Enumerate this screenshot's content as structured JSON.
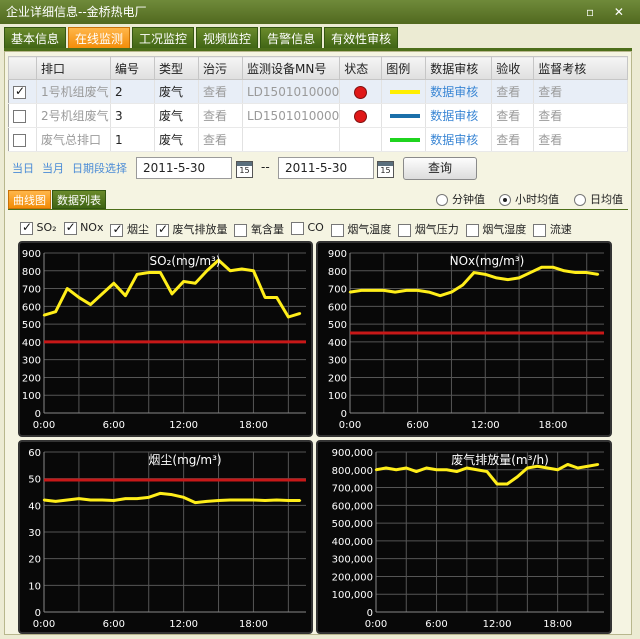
{
  "window": {
    "title": "企业详细信息--金桥热电厂",
    "controls": "▫ ✕"
  },
  "tabs": [
    "基本信息",
    "在线监测",
    "工况监控",
    "视频监控",
    "告警信息",
    "有效性审核"
  ],
  "table": {
    "headers": [
      "",
      "排口",
      "编号",
      "类型",
      "治污",
      "监测设备MN号",
      "状态",
      "图例",
      "数据审核",
      "验收",
      "监督考核"
    ],
    "rows": [
      {
        "checked": true,
        "outlet": "1号机组废气",
        "no": "2",
        "type": "废气",
        "treat": "查看",
        "mn": "LD1501010000",
        "status": "red",
        "legend_color": "#ffee00",
        "audit": "数据审核",
        "accept": "查看",
        "supervise": "查看"
      },
      {
        "checked": false,
        "outlet": "2号机组废气",
        "no": "3",
        "type": "废气",
        "treat": "查看",
        "mn": "LD1501010000",
        "status": "red",
        "legend_color": "#1a6faa",
        "audit": "数据审核",
        "accept": "查看",
        "supervise": "查看"
      },
      {
        "checked": false,
        "outlet": "废气总排口",
        "no": "1",
        "type": "废气",
        "treat": "查看",
        "mn": "",
        "status": "",
        "legend_color": "#1fd41f",
        "audit": "数据审核",
        "accept": "查看",
        "supervise": "查看"
      }
    ]
  },
  "query": {
    "today": "当日",
    "month": "当月",
    "range": "日期段选择",
    "start": "2011-5-30",
    "sep": "--",
    "end": "2011-5-30",
    "cal_day": "15",
    "button": "查询"
  },
  "subtabs": [
    "曲线图",
    "数据列表"
  ],
  "radios": [
    {
      "label": "分钟值",
      "on": false
    },
    {
      "label": "小时均值",
      "on": true
    },
    {
      "label": "日均值",
      "on": false
    }
  ],
  "checks": [
    {
      "label": "SO₂",
      "on": true
    },
    {
      "label": "NOx",
      "on": true
    },
    {
      "label": "烟尘",
      "on": true
    },
    {
      "label": "废气排放量",
      "on": true
    },
    {
      "label": "氧含量",
      "on": false
    },
    {
      "label": "CO",
      "on": false
    },
    {
      "label": "烟气温度",
      "on": false
    },
    {
      "label": "烟气压力",
      "on": false
    },
    {
      "label": "烟气湿度",
      "on": false
    },
    {
      "label": "流速",
      "on": false
    }
  ],
  "chart_data": [
    {
      "type": "line",
      "title": "SO₂(mg/m³)",
      "ylim": [
        0,
        900
      ],
      "yticks": [
        "0",
        "100",
        "200",
        "300",
        "400",
        "500",
        "600",
        "700",
        "800",
        "900"
      ],
      "xticks": [
        "0:00",
        "6:00",
        "12:00",
        "18:00"
      ],
      "limit": 400,
      "x": [
        0,
        1,
        2,
        3,
        4,
        5,
        6,
        7,
        8,
        9,
        10,
        11,
        12,
        13,
        14,
        15,
        16,
        17,
        18,
        19,
        20,
        21,
        22
      ],
      "values": [
        550,
        570,
        700,
        650,
        610,
        670,
        730,
        660,
        780,
        790,
        790,
        670,
        740,
        730,
        800,
        860,
        800,
        810,
        800,
        650,
        650,
        540,
        560
      ]
    },
    {
      "type": "line",
      "title": "NOx(mg/m³)",
      "ylim": [
        0,
        900
      ],
      "yticks": [
        "0",
        "100",
        "200",
        "300",
        "400",
        "500",
        "600",
        "700",
        "800",
        "900"
      ],
      "xticks": [
        "0:00",
        "6:00",
        "12:00",
        "18:00"
      ],
      "limit": 450,
      "x": [
        0,
        1,
        2,
        3,
        4,
        5,
        6,
        7,
        8,
        9,
        10,
        11,
        12,
        13,
        14,
        15,
        16,
        17,
        18,
        19,
        20,
        21,
        22
      ],
      "values": [
        680,
        690,
        690,
        690,
        680,
        690,
        690,
        680,
        660,
        680,
        720,
        790,
        780,
        760,
        750,
        760,
        790,
        820,
        820,
        800,
        790,
        790,
        780
      ]
    },
    {
      "type": "line",
      "title": "烟尘(mg/m³)",
      "ylim": [
        0,
        60
      ],
      "yticks": [
        "0",
        "10",
        "20",
        "30",
        "40",
        "50",
        "60"
      ],
      "xticks": [
        "0:00",
        "6:00",
        "12:00",
        "18:00"
      ],
      "limit": 49.5,
      "x": [
        0,
        1,
        2,
        3,
        4,
        5,
        6,
        7,
        8,
        9,
        10,
        11,
        12,
        13,
        14,
        15,
        16,
        17,
        18,
        19,
        20,
        21,
        22
      ],
      "values": [
        42,
        41.5,
        42,
        42.5,
        42,
        42,
        41.8,
        42.5,
        42.5,
        43,
        44.5,
        44,
        43,
        41,
        41.5,
        41.8,
        42,
        42,
        42,
        41.8,
        42,
        41.8,
        41.8
      ]
    },
    {
      "type": "line",
      "title": "废气排放量(m³/h)",
      "ylim": [
        0,
        900000
      ],
      "yticks": [
        "0",
        "100,000",
        "200,000",
        "300,000",
        "400,000",
        "500,000",
        "600,000",
        "700,000",
        "800,000",
        "900,000"
      ],
      "xticks": [
        "0:00",
        "6:00",
        "12:00",
        "18:00"
      ],
      "limit": null,
      "x": [
        0,
        1,
        2,
        3,
        4,
        5,
        6,
        7,
        8,
        9,
        10,
        11,
        12,
        13,
        14,
        15,
        16,
        17,
        18,
        19,
        20,
        21,
        22
      ],
      "values": [
        800000,
        810000,
        800000,
        810000,
        790000,
        810000,
        800000,
        800000,
        790000,
        810000,
        800000,
        790000,
        720000,
        720000,
        760000,
        810000,
        820000,
        810000,
        800000,
        830000,
        810000,
        820000,
        830000
      ]
    }
  ]
}
